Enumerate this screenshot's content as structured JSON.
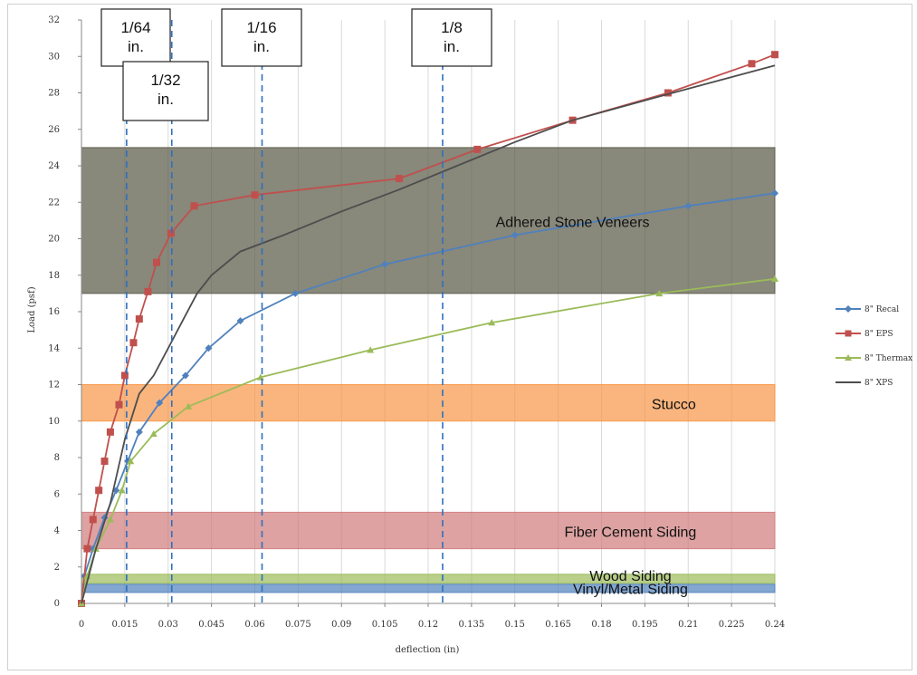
{
  "chart_data": {
    "type": "line",
    "xlabel": "deflection (in)",
    "ylabel": "Load (psf)",
    "xlim": [
      0,
      0.24
    ],
    "ylim": [
      0,
      32
    ],
    "x_ticks": [
      "0",
      "0.015",
      "0.03",
      "0.045",
      "0.06",
      "0.075",
      "0.09",
      "0.105",
      "0.12",
      "0.135",
      "0.15",
      "0.165",
      "0.18",
      "0.195",
      "0.21",
      "0.225",
      "0.24"
    ],
    "y_ticks": [
      "0",
      "2",
      "4",
      "6",
      "8",
      "10",
      "12",
      "14",
      "16",
      "18",
      "20",
      "22",
      "24",
      "26",
      "28",
      "30",
      "32"
    ],
    "grid": "vertical",
    "legend_position": "right",
    "series": [
      {
        "name": "8\" Recal",
        "color": "#4f81bd",
        "marker": "diamond",
        "points": [
          [
            0,
            0
          ],
          [
            0.001,
            1.5
          ],
          [
            0.004,
            3
          ],
          [
            0.008,
            4.7
          ],
          [
            0.012,
            6.2
          ],
          [
            0.016,
            7.8
          ],
          [
            0.02,
            9.4
          ],
          [
            0.027,
            11
          ],
          [
            0.036,
            12.5
          ],
          [
            0.044,
            14
          ],
          [
            0.055,
            15.5
          ],
          [
            0.074,
            17
          ],
          [
            0.105,
            18.6
          ],
          [
            0.15,
            20.2
          ],
          [
            0.21,
            21.8
          ],
          [
            0.24,
            22.5
          ]
        ]
      },
      {
        "name": "8\" EPS",
        "color": "#c0504d",
        "marker": "square",
        "points": [
          [
            0,
            0
          ],
          [
            0.002,
            3
          ],
          [
            0.004,
            4.6
          ],
          [
            0.006,
            6.2
          ],
          [
            0.008,
            7.8
          ],
          [
            0.01,
            9.4
          ],
          [
            0.013,
            10.9
          ],
          [
            0.015,
            12.5
          ],
          [
            0.018,
            14.3
          ],
          [
            0.02,
            15.6
          ],
          [
            0.023,
            17.1
          ],
          [
            0.026,
            18.7
          ],
          [
            0.031,
            20.3
          ],
          [
            0.039,
            21.8
          ],
          [
            0.06,
            22.4
          ],
          [
            0.11,
            23.3
          ],
          [
            0.137,
            24.9
          ],
          [
            0.17,
            26.5
          ],
          [
            0.203,
            28
          ],
          [
            0.232,
            29.6
          ],
          [
            0.24,
            30.1
          ]
        ]
      },
      {
        "name": "8\" Thermax",
        "color": "#9bbb59",
        "marker": "triangle",
        "points": [
          [
            0,
            0
          ],
          [
            0.002,
            1.5
          ],
          [
            0.005,
            3
          ],
          [
            0.01,
            4.6
          ],
          [
            0.014,
            6.2
          ],
          [
            0.017,
            7.8
          ],
          [
            0.025,
            9.3
          ],
          [
            0.037,
            10.8
          ],
          [
            0.062,
            12.4
          ],
          [
            0.1,
            13.9
          ],
          [
            0.142,
            15.4
          ],
          [
            0.2,
            17
          ],
          [
            0.24,
            17.8
          ]
        ]
      },
      {
        "name": "8\" XPS",
        "color": "#4d4d4d",
        "marker": "none",
        "points": [
          [
            0,
            0
          ],
          [
            0.005,
            3
          ],
          [
            0.01,
            5.5
          ],
          [
            0.015,
            9
          ],
          [
            0.02,
            11.5
          ],
          [
            0.025,
            12.5
          ],
          [
            0.03,
            14
          ],
          [
            0.035,
            15.5
          ],
          [
            0.04,
            17
          ],
          [
            0.045,
            18
          ],
          [
            0.055,
            19.3
          ],
          [
            0.07,
            20.2
          ],
          [
            0.09,
            21.5
          ],
          [
            0.11,
            22.7
          ],
          [
            0.13,
            24
          ],
          [
            0.15,
            25.3
          ],
          [
            0.17,
            26.5
          ],
          [
            0.2,
            27.8
          ],
          [
            0.24,
            29.5
          ]
        ]
      }
    ],
    "bands": [
      {
        "label": "Adhered Stone Veneers",
        "y_min": 17,
        "y_max": 25,
        "color": "#5a5a48"
      },
      {
        "label": "Stucco",
        "y_min": 10,
        "y_max": 12,
        "color": "#f79646"
      },
      {
        "label": "Fiber Cement Siding",
        "y_min": 3,
        "y_max": 5,
        "color": "#d07a7a"
      },
      {
        "label": "Wood Siding",
        "y_min": 1.1,
        "y_max": 1.6,
        "color": "#9bbb59"
      },
      {
        "label": "Vinyl/Metal Siding",
        "y_min": 0.6,
        "y_max": 1.05,
        "color": "#4f81bd"
      }
    ],
    "reference_lines": [
      {
        "x": 0.015625,
        "label": [
          "1/64",
          "in."
        ]
      },
      {
        "x": 0.03125,
        "label": [
          "1/32",
          "in."
        ]
      },
      {
        "x": 0.0625,
        "label": [
          "1/16",
          "in."
        ]
      },
      {
        "x": 0.125,
        "label": [
          "1/8",
          "in."
        ]
      }
    ]
  }
}
